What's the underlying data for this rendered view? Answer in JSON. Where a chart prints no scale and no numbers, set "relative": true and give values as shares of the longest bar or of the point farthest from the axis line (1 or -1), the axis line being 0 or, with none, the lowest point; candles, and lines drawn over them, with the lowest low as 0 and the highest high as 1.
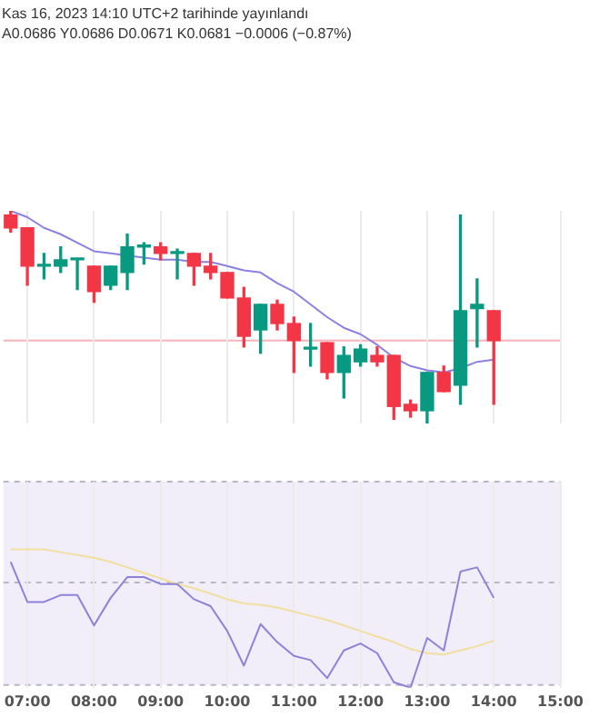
{
  "chart_data": [
    {
      "type": "candlestick",
      "title": "Kas 16, 2023 14:10 UTC+2 tarihinde yayınlandı",
      "subtitle": "A0.0686 Y0.0686 D0.0671 K0.0681 −0.0006 (−0.87%)",
      "relative": true,
      "grid": "x",
      "tick_labels": false,
      "x": [
        6.75,
        7,
        7.25,
        7.5,
        7.75,
        8,
        8.25,
        8.5,
        8.75,
        9,
        9.25,
        9.5,
        9.75,
        10,
        10.25,
        10.5,
        10.75,
        11,
        11.25,
        11.5,
        11.75,
        12,
        12.25,
        12.5,
        12.75,
        13,
        13.25,
        13.5,
        13.75,
        14
      ],
      "xlim": [
        6.64,
        15
      ],
      "xticks": [
        {
          "value": 7,
          "label": null
        },
        {
          "value": 8,
          "label": null
        },
        {
          "value": 9,
          "label": null
        },
        {
          "value": 10,
          "label": null
        },
        {
          "value": 11,
          "label": null
        },
        {
          "value": 12,
          "label": null
        },
        {
          "value": 13,
          "label": null
        },
        {
          "value": 14,
          "label": null
        },
        {
          "value": 15,
          "label": null
        }
      ],
      "series": [
        {
          "type": "candlestick",
          "ohlc": [
            [
              0.98,
              1.0,
              0.9,
              0.92
            ],
            [
              0.92,
              0.92,
              0.65,
              0.74
            ],
            [
              0.74,
              0.8,
              0.68,
              0.74
            ],
            [
              0.74,
              0.83,
              0.71,
              0.77
            ],
            [
              0.77,
              0.77,
              0.63,
              0.77
            ],
            [
              0.74,
              0.74,
              0.57,
              0.62
            ],
            [
              0.65,
              0.74,
              0.63,
              0.74
            ],
            [
              0.71,
              0.89,
              0.63,
              0.83
            ],
            [
              0.83,
              0.85,
              0.75,
              0.83
            ],
            [
              0.83,
              0.85,
              0.77,
              0.8
            ],
            [
              0.8,
              0.82,
              0.68,
              0.8
            ],
            [
              0.8,
              0.8,
              0.65,
              0.74
            ],
            [
              0.74,
              0.8,
              0.68,
              0.71
            ],
            [
              0.71,
              0.71,
              0.59,
              0.59
            ],
            [
              0.59,
              0.64,
              0.36,
              0.41
            ],
            [
              0.44,
              0.56,
              0.33,
              0.56
            ],
            [
              0.56,
              0.58,
              0.44,
              0.47
            ],
            [
              0.47,
              0.5,
              0.24,
              0.39
            ],
            [
              0.35,
              0.47,
              0.27,
              0.35
            ],
            [
              0.38,
              0.38,
              0.21,
              0.24
            ],
            [
              0.24,
              0.36,
              0.12,
              0.32
            ],
            [
              0.29,
              0.37,
              0.27,
              0.35
            ],
            [
              0.32,
              0.36,
              0.27,
              0.29
            ],
            [
              0.32,
              0.32,
              0.02,
              0.08
            ],
            [
              0.09,
              0.11,
              0.03,
              0.06
            ],
            [
              0.06,
              0.24,
              0,
              0.24
            ],
            [
              0.24,
              0.27,
              0.15,
              0.15
            ],
            [
              0.18,
              0.98,
              0.09,
              0.53
            ],
            [
              0.54,
              0.68,
              0.36,
              0.56
            ],
            [
              0.53,
              0.53,
              0.09,
              0.39
            ]
          ],
          "colors": [
            "#f23645",
            "#f23645",
            "#089981",
            "#089981",
            "#089981",
            "#f23645",
            "#089981",
            "#089981",
            "#089981",
            "#f23645",
            "#089981",
            "#f23645",
            "#f23645",
            "#f23645",
            "#f23645",
            "#089981",
            "#f23645",
            "#f23645",
            "#089981",
            "#f23645",
            "#089981",
            "#089981",
            "#f23645",
            "#f23645",
            "#f23645",
            "#089981",
            "#f23645",
            "#089981",
            "#089981",
            "#f23645"
          ]
        },
        {
          "type": "line",
          "color": "#8c80e0",
          "values": [
            1.0,
            0.97,
            0.92,
            0.89,
            0.85,
            0.81,
            0.8,
            0.79,
            0.78,
            0.77,
            0.77,
            0.76,
            0.76,
            0.74,
            0.72,
            0.71,
            0.66,
            0.62,
            0.56,
            0.5,
            0.45,
            0.42,
            0.37,
            0.31,
            0.27,
            0.25,
            0.24,
            0.26,
            0.29,
            0.3
          ]
        }
      ],
      "ref_lines": [
        {
          "axis": "y",
          "value": 0.39,
          "color": "#f7b3ba"
        }
      ]
    },
    {
      "type": "line",
      "relative": true,
      "grid": "x",
      "tick_labels": "x",
      "x": [
        6.75,
        7,
        7.25,
        7.5,
        7.75,
        8,
        8.25,
        8.5,
        8.75,
        9,
        9.25,
        9.5,
        9.75,
        10,
        10.25,
        10.5,
        10.75,
        11,
        11.25,
        11.5,
        11.75,
        12,
        12.25,
        12.5,
        12.75,
        13,
        13.25,
        13.5,
        13.75,
        14
      ],
      "xlim": [
        6.64,
        15
      ],
      "xticks": [
        {
          "value": 7,
          "label": "07:00"
        },
        {
          "value": 8,
          "label": "08:00"
        },
        {
          "value": 9,
          "label": "09:00"
        },
        {
          "value": 10,
          "label": "10:00"
        },
        {
          "value": 11,
          "label": "11:00"
        },
        {
          "value": 12,
          "label": "12:00"
        },
        {
          "value": 13,
          "label": "13:00"
        },
        {
          "value": 14,
          "label": "14:00"
        },
        {
          "value": 15,
          "label": "15:00"
        }
      ],
      "series": [
        {
          "color": "#8e82d8",
          "values": [
            0.91,
            0.62,
            0.62,
            0.67,
            0.67,
            0.45,
            0.65,
            0.8,
            0.8,
            0.75,
            0.75,
            0.64,
            0.59,
            0.41,
            0.16,
            0.46,
            0.33,
            0.23,
            0.2,
            0.07,
            0.27,
            0.32,
            0.25,
            0.04,
            0,
            0.36,
            0.27,
            0.84,
            0.87,
            0.65
          ]
        },
        {
          "color": "#f2dfa0",
          "values": [
            1.0,
            1.0,
            1.0,
            0.98,
            0.96,
            0.94,
            0.91,
            0.87,
            0.83,
            0.79,
            0.75,
            0.72,
            0.68,
            0.64,
            0.61,
            0.6,
            0.58,
            0.55,
            0.52,
            0.49,
            0.45,
            0.41,
            0.37,
            0.33,
            0.28,
            0.25,
            0.24,
            0.27,
            0.3,
            0.34
          ]
        }
      ],
      "bands": [
        {
          "axis": "y",
          "from": 0.02,
          "to": 1.49,
          "color": "#f1eef9"
        }
      ],
      "ref_lines": [
        {
          "axis": "y",
          "value": 1.49,
          "color": "#b8b8c4",
          "line_style": "dashed"
        },
        {
          "axis": "y",
          "value": 0.76,
          "color": "#b8b8c4",
          "line_style": "dashed"
        },
        {
          "axis": "y",
          "value": 0.02,
          "color": "#b8b8c4",
          "line_style": "dashed"
        }
      ]
    }
  ]
}
